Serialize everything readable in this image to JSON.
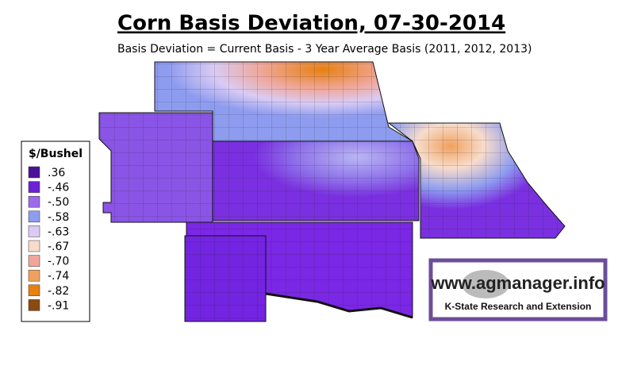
{
  "header": {
    "title": "Corn Basis Deviation, 07-30-2014",
    "subtitle": "Basis Deviation = Current Basis - 3 Year Average Basis (2011, 2012, 2013)"
  },
  "legend": {
    "title": "$/Bushel",
    "items": [
      {
        "label": ".36",
        "color": "#4a1199"
      },
      {
        "label": "-.46",
        "color": "#6c22d8"
      },
      {
        "label": "-.50",
        "color": "#9d6ae9"
      },
      {
        "label": "-.58",
        "color": "#8e9cf0"
      },
      {
        "label": "-.63",
        "color": "#dacbf4"
      },
      {
        "label": "-.67",
        "color": "#f7dccb"
      },
      {
        "label": "-.70",
        "color": "#f0a79a"
      },
      {
        "label": "-.74",
        "color": "#f1a15e"
      },
      {
        "label": "-.82",
        "color": "#e8800f"
      },
      {
        "label": "-.91",
        "color": "#8a4a10"
      }
    ]
  },
  "logo": {
    "url": "www.agmanager.info",
    "org": "K-State Research and Extension"
  }
}
